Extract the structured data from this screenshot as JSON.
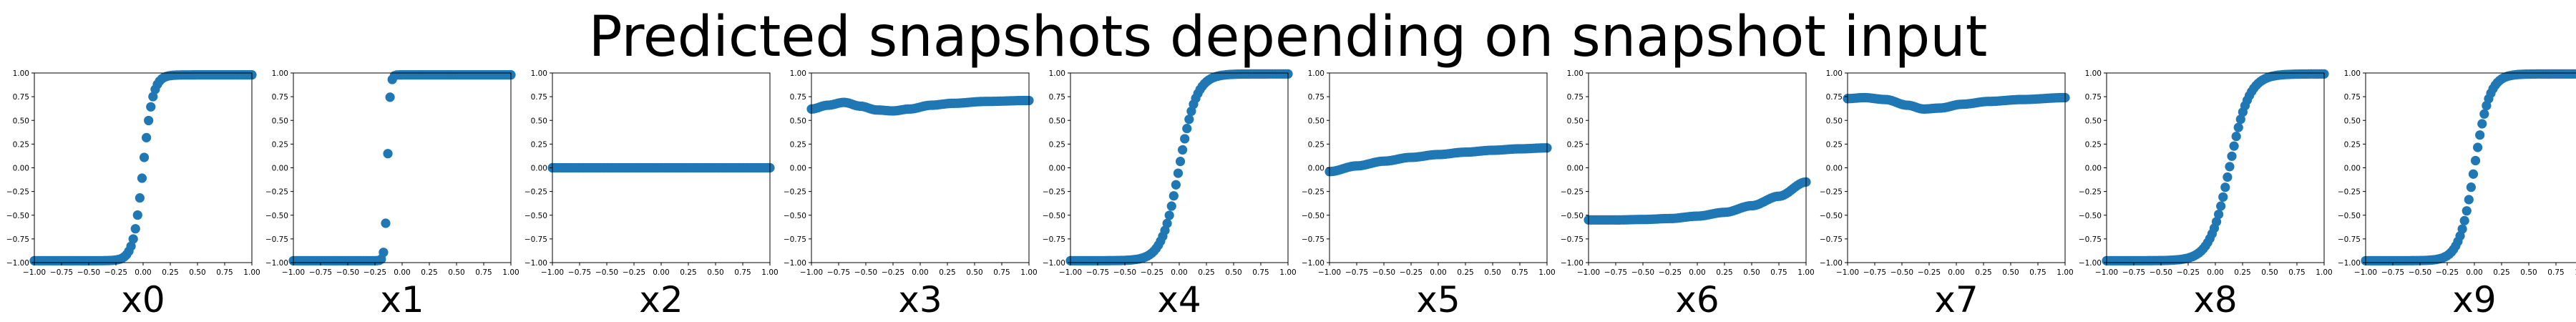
{
  "title": "Predicted snapshots depending on snapshot input",
  "colors": {
    "marker": "#1f77b4",
    "axes": "#000000",
    "background": "#ffffff"
  },
  "chart_data": [
    {
      "type": "scatter",
      "xlabel": "x0",
      "xlim": [
        -1,
        1
      ],
      "ylim": [
        -1,
        1
      ],
      "grid": false,
      "xticks": [
        "−1.00",
        "−0.75",
        "−0.50",
        "−0.25",
        "0.00",
        "0.25",
        "0.50",
        "0.75",
        "1.00"
      ],
      "yticks": [
        "−1.00",
        "−0.75",
        "−0.50",
        "−0.25",
        "0.00",
        "0.25",
        "0.50",
        "0.75",
        "1.00"
      ],
      "series": [
        {
          "model": "sigmoid",
          "params": {
            "low": -0.98,
            "high": 0.98,
            "center": 0.0,
            "scale": 0.045
          }
        }
      ]
    },
    {
      "type": "scatter",
      "xlabel": "x1",
      "xlim": [
        -1,
        1
      ],
      "ylim": [
        -1,
        1
      ],
      "grid": false,
      "xticks": [
        "−1.00",
        "−0.75",
        "−0.50",
        "−0.25",
        "0.00",
        "0.25",
        "0.50",
        "0.75",
        "1.00"
      ],
      "yticks": [
        "−1.00",
        "−0.75",
        "−0.50",
        "−0.25",
        "0.00",
        "0.25",
        "0.50",
        "0.75",
        "1.00"
      ],
      "series": [
        {
          "model": "sigmoid",
          "params": {
            "low": -0.98,
            "high": 0.98,
            "center": -0.135,
            "scale": 0.012
          }
        }
      ]
    },
    {
      "type": "scatter",
      "xlabel": "x2",
      "xlim": [
        -1,
        1
      ],
      "ylim": [
        -1,
        1
      ],
      "grid": false,
      "xticks": [
        "−1.00",
        "−0.75",
        "−0.50",
        "−0.25",
        "0.00",
        "0.25",
        "0.50",
        "0.75",
        "1.00"
      ],
      "yticks": [
        "−1.00",
        "−0.75",
        "−0.50",
        "−0.25",
        "0.00",
        "0.25",
        "0.50",
        "0.75",
        "1.00"
      ],
      "series": [
        {
          "model": "constant",
          "params": {
            "value": 0.0
          }
        }
      ]
    },
    {
      "type": "scatter",
      "xlabel": "x3",
      "xlim": [
        -1,
        1
      ],
      "ylim": [
        -1,
        1
      ],
      "grid": false,
      "xticks": [
        "−1.00",
        "−0.75",
        "−0.50",
        "−0.25",
        "0.00",
        "0.25",
        "0.50",
        "0.75",
        "1.00"
      ],
      "yticks": [
        "−1.00",
        "−0.75",
        "−0.50",
        "−0.25",
        "0.00",
        "0.25",
        "0.50",
        "0.75",
        "1.00"
      ],
      "series": [
        {
          "model": "interp",
          "points": [
            [
              -1,
              0.62
            ],
            [
              -0.85,
              0.66
            ],
            [
              -0.7,
              0.69
            ],
            [
              -0.55,
              0.65
            ],
            [
              -0.4,
              0.61
            ],
            [
              -0.25,
              0.6
            ],
            [
              -0.1,
              0.62
            ],
            [
              0.1,
              0.66
            ],
            [
              0.3,
              0.68
            ],
            [
              0.6,
              0.7
            ],
            [
              1,
              0.71
            ]
          ]
        }
      ]
    },
    {
      "type": "scatter",
      "xlabel": "x4",
      "xlim": [
        -1,
        1
      ],
      "ylim": [
        -1,
        1
      ],
      "grid": false,
      "xticks": [
        "−1.00",
        "−0.75",
        "−0.50",
        "−0.25",
        "0.00",
        "0.25",
        "0.50",
        "0.75",
        "1.00"
      ],
      "yticks": [
        "−1.00",
        "−0.75",
        "−0.50",
        "−0.25",
        "0.00",
        "0.25",
        "0.50",
        "0.75",
        "1.00"
      ],
      "series": [
        {
          "model": "sigmoid",
          "params": {
            "low": -0.98,
            "high": 0.99,
            "center": 0.0,
            "scale": 0.08
          }
        }
      ]
    },
    {
      "type": "scatter",
      "xlabel": "x5",
      "xlim": [
        -1,
        1
      ],
      "ylim": [
        -1,
        1
      ],
      "grid": false,
      "xticks": [
        "−1.00",
        "−0.75",
        "−0.50",
        "−0.25",
        "0.00",
        "0.25",
        "0.50",
        "0.75",
        "1.00"
      ],
      "yticks": [
        "−1.00",
        "−0.75",
        "−0.50",
        "−0.25",
        "0.00",
        "0.25",
        "0.50",
        "0.75",
        "1.00"
      ],
      "series": [
        {
          "model": "interp",
          "points": [
            [
              -1,
              -0.04
            ],
            [
              -0.75,
              0.02
            ],
            [
              -0.5,
              0.07
            ],
            [
              -0.25,
              0.11
            ],
            [
              0,
              0.14
            ],
            [
              0.25,
              0.165
            ],
            [
              0.5,
              0.185
            ],
            [
              0.75,
              0.2
            ],
            [
              1,
              0.21
            ]
          ]
        }
      ]
    },
    {
      "type": "scatter",
      "xlabel": "x6",
      "xlim": [
        -1,
        1
      ],
      "ylim": [
        -1,
        1
      ],
      "grid": false,
      "xticks": [
        "−1.00",
        "−0.75",
        "−0.50",
        "−0.25",
        "0.00",
        "0.25",
        "0.50",
        "0.75",
        "1.00"
      ],
      "yticks": [
        "−1.00",
        "−0.75",
        "−0.50",
        "−0.25",
        "0.00",
        "0.25",
        "0.50",
        "0.75",
        "1.00"
      ],
      "series": [
        {
          "model": "interp",
          "points": [
            [
              -1,
              -0.55
            ],
            [
              -0.75,
              -0.55
            ],
            [
              -0.5,
              -0.545
            ],
            [
              -0.25,
              -0.535
            ],
            [
              0,
              -0.51
            ],
            [
              0.25,
              -0.47
            ],
            [
              0.5,
              -0.4
            ],
            [
              0.75,
              -0.3
            ],
            [
              1,
              -0.15
            ]
          ]
        }
      ]
    },
    {
      "type": "scatter",
      "xlabel": "x7",
      "xlim": [
        -1,
        1
      ],
      "ylim": [
        -1,
        1
      ],
      "grid": false,
      "xticks": [
        "−1.00",
        "−0.75",
        "−0.50",
        "−0.25",
        "0.00",
        "0.25",
        "0.50",
        "0.75",
        "1.00"
      ],
      "yticks": [
        "−1.00",
        "−0.75",
        "−0.50",
        "−0.25",
        "0.00",
        "0.25",
        "0.50",
        "0.75",
        "1.00"
      ],
      "series": [
        {
          "model": "interp",
          "points": [
            [
              -1,
              0.73
            ],
            [
              -0.85,
              0.74
            ],
            [
              -0.65,
              0.72
            ],
            [
              -0.45,
              0.66
            ],
            [
              -0.3,
              0.62
            ],
            [
              -0.15,
              0.63
            ],
            [
              0.05,
              0.67
            ],
            [
              0.3,
              0.7
            ],
            [
              0.6,
              0.72
            ],
            [
              1,
              0.74
            ]
          ]
        }
      ]
    },
    {
      "type": "scatter",
      "xlabel": "x8",
      "xlim": [
        -1,
        1
      ],
      "ylim": [
        -1,
        1
      ],
      "grid": false,
      "xticks": [
        "−1.00",
        "−0.75",
        "−0.50",
        "−0.25",
        "0.00",
        "0.25",
        "0.50",
        "0.75",
        "1.00"
      ],
      "yticks": [
        "−1.00",
        "−0.75",
        "−0.50",
        "−0.25",
        "0.00",
        "0.25",
        "0.50",
        "0.75",
        "1.00"
      ],
      "series": [
        {
          "model": "sigmoid",
          "params": {
            "low": -0.98,
            "high": 0.99,
            "center": 0.13,
            "scale": 0.09
          }
        }
      ]
    },
    {
      "type": "scatter",
      "xlabel": "x9",
      "xlim": [
        -1,
        1
      ],
      "ylim": [
        -1,
        1
      ],
      "grid": false,
      "xticks": [
        "−1.00",
        "−0.75",
        "−0.50",
        "−0.25",
        "0.00",
        "0.25",
        "0.50",
        "0.75",
        "1.00"
      ],
      "yticks": [
        "−1.00",
        "−0.75",
        "−0.50",
        "−0.25",
        "0.00",
        "0.25",
        "0.50",
        "0.75",
        "1.00"
      ],
      "series": [
        {
          "model": "sigmoid",
          "params": {
            "low": -0.98,
            "high": 0.99,
            "center": 0.0,
            "scale": 0.07
          }
        }
      ]
    }
  ]
}
